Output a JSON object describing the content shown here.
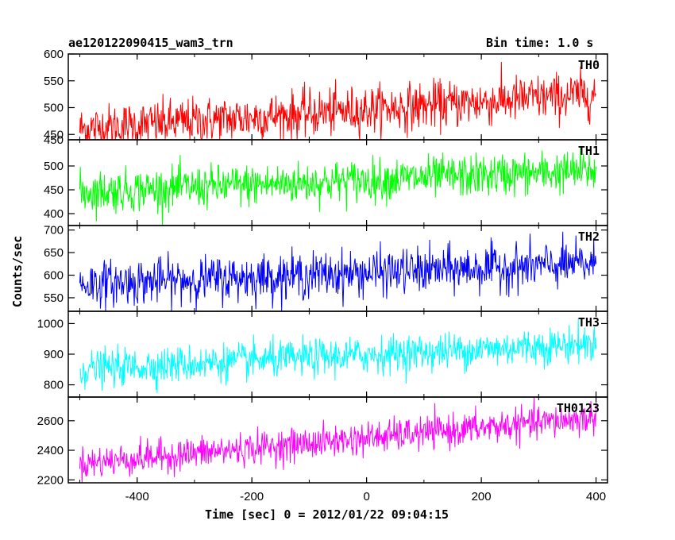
{
  "header": {
    "title_left": "ae120122090415_wam3_trn",
    "title_right": "Bin time: 1.0 s"
  },
  "axes": {
    "xlabel": "Time [sec] 0 = 2012/01/22 09:04:15",
    "ylabel": "Counts/sec",
    "xlim": [
      -520,
      420
    ],
    "xticks": [
      -400,
      -200,
      0,
      200,
      400
    ]
  },
  "chart_data": {
    "type": "line",
    "x_start": -500,
    "x_end": 400,
    "bin": 1.0,
    "panels": [
      {
        "name": "TH0",
        "color": "#ff0000",
        "ylim": [
          440,
          600
        ],
        "yticks": [
          450,
          500,
          550,
          600
        ],
        "extra_tick_label": "450",
        "start_mean": 460,
        "end_mean": 525,
        "spread": 22
      },
      {
        "name": "TH1",
        "color": "#00ff00",
        "ylim": [
          375,
          555
        ],
        "yticks": [
          400,
          450,
          500
        ],
        "start_mean": 445,
        "end_mean": 490,
        "spread": 22
      },
      {
        "name": "TH2",
        "color": "#0000ff",
        "ylim": [
          520,
          710
        ],
        "yticks": [
          550,
          600,
          650,
          700
        ],
        "start_mean": 580,
        "end_mean": 625,
        "spread": 25
      },
      {
        "name": "TH3",
        "color": "#00ffff",
        "ylim": [
          760,
          1040
        ],
        "yticks": [
          800,
          900,
          1000
        ],
        "start_mean": 850,
        "end_mean": 935,
        "spread": 30
      },
      {
        "name": "TH0123",
        "color": "#ff00ff",
        "ylim": [
          2180,
          2760
        ],
        "yticks": [
          2200,
          2400,
          2600
        ],
        "start_mean": 2310,
        "end_mean": 2620,
        "spread": 55
      }
    ]
  }
}
